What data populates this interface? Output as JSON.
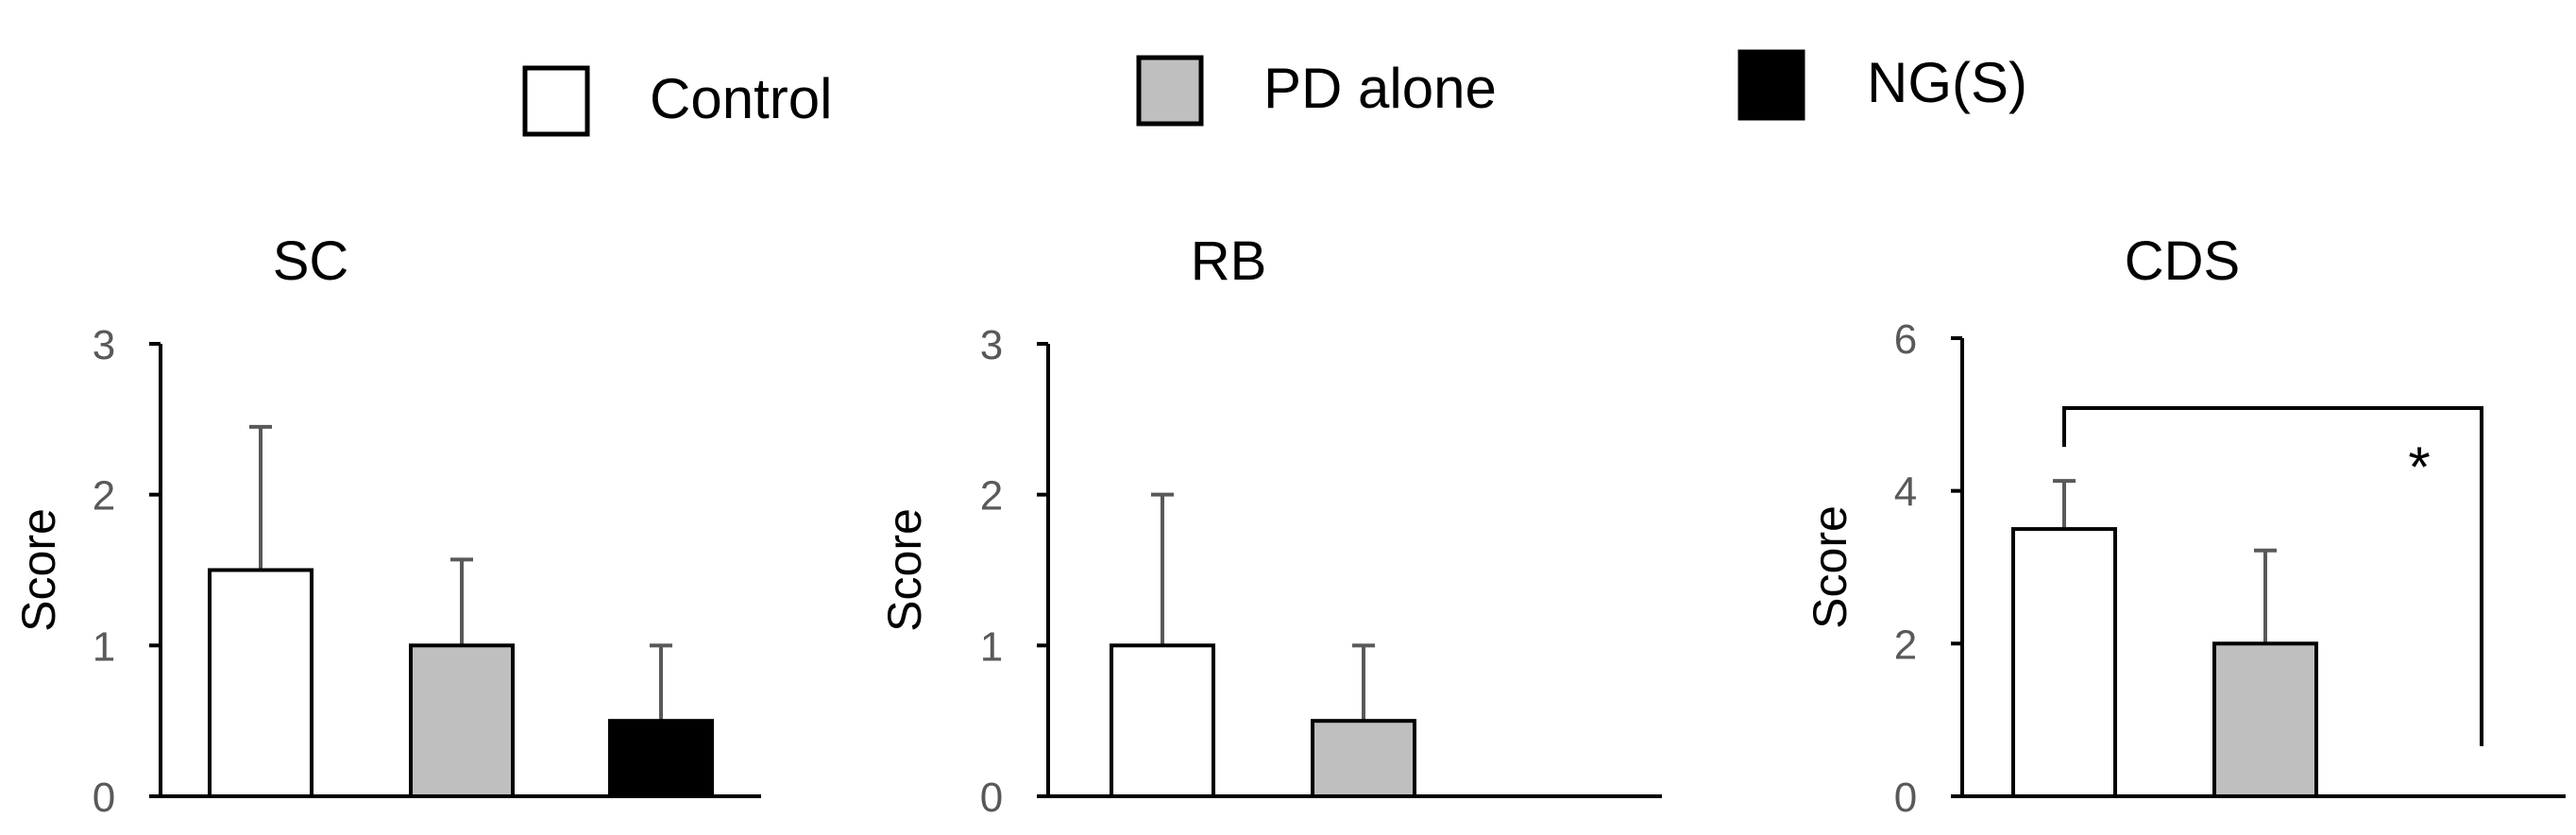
{
  "chart_data": {
    "type": "bar",
    "legend": {
      "placement": "top",
      "entries": [
        {
          "name": "Control",
          "color": "#ffffff"
        },
        {
          "name": "PD alone",
          "color": "#bfbfbf"
        },
        {
          "name": "NG(S)",
          "color": "#000000"
        }
      ]
    },
    "panels": [
      {
        "title": "SC",
        "ylabel": "Score",
        "ylim": [
          0,
          3
        ],
        "yticks": [
          0,
          1,
          2,
          3
        ],
        "series": [
          {
            "name": "Control",
            "value": 1.5,
            "error": 0.95
          },
          {
            "name": "PD alone",
            "value": 1.0,
            "error": 0.57
          },
          {
            "name": "NG(S)",
            "value": 0.5,
            "error": 0.5
          }
        ],
        "significance": null
      },
      {
        "title": "RB",
        "ylabel": "Score",
        "ylim": [
          0,
          3
        ],
        "yticks": [
          0,
          1,
          2,
          3
        ],
        "series": [
          {
            "name": "Control",
            "value": 1.0,
            "error": 1.0
          },
          {
            "name": "PD alone",
            "value": 0.5,
            "error": 0.5
          },
          {
            "name": "NG(S)",
            "value": 0,
            "error": 0
          }
        ],
        "significance": null
      },
      {
        "title": "CDS",
        "ylabel": "Score",
        "ylim": [
          0,
          6
        ],
        "yticks": [
          0,
          2,
          4,
          6
        ],
        "series": [
          {
            "name": "Control",
            "value": 3.5,
            "error": 0.63
          },
          {
            "name": "PD alone",
            "value": 2.0,
            "error": 1.22
          },
          {
            "name": "NG(S)",
            "value": 0,
            "error": 0
          }
        ],
        "significance": {
          "from": "Control",
          "to": "NG(S)",
          "label": "*"
        }
      }
    ]
  }
}
